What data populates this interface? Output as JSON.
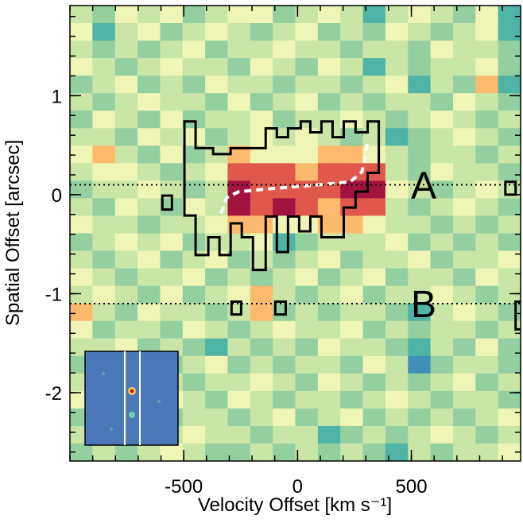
{
  "chart_data": {
    "type": "heatmap",
    "xlabel": "Velocity Offset [km s⁻¹]",
    "ylabel": "Spatial Offset [arcsec]",
    "xlim": [
      -1000,
      980
    ],
    "ylim": [
      -2.69,
      1.91
    ],
    "xticks": [
      -500,
      0,
      500
    ],
    "yticks": [
      1,
      0,
      -1,
      -2
    ],
    "x_minor_step": 100,
    "y_minor_step": 0.2,
    "colormap": [
      "#3f67b0",
      "#3f8fb8",
      "#4fb3a6",
      "#94cfa0",
      "#c9e6a6",
      "#eff5b4",
      "#fdba6e",
      "#e0574b",
      "#a3133f"
    ],
    "grid_values": [
      [
        4,
        3,
        5,
        4,
        5,
        3,
        4,
        5,
        5,
        3,
        4,
        5,
        4,
        2,
        4,
        5,
        4,
        3,
        5,
        2
      ],
      [
        5,
        2,
        4,
        5,
        3,
        4,
        5,
        4,
        3,
        4,
        5,
        3,
        4,
        3,
        5,
        4,
        3,
        4,
        5,
        2
      ],
      [
        4,
        3,
        4,
        3,
        4,
        5,
        3,
        4,
        4,
        5,
        4,
        4,
        3,
        4,
        4,
        3,
        5,
        4,
        4,
        3
      ],
      [
        5,
        4,
        3,
        4,
        5,
        4,
        4,
        3,
        5,
        4,
        3,
        5,
        4,
        2,
        4,
        3,
        4,
        4,
        5,
        3
      ],
      [
        3,
        4,
        5,
        3,
        4,
        3,
        5,
        4,
        4,
        3,
        4,
        4,
        3,
        4,
        5,
        2,
        4,
        3,
        6,
        2
      ],
      [
        4,
        3,
        4,
        5,
        4,
        4,
        3,
        5,
        3,
        4,
        5,
        3,
        4,
        3,
        4,
        4,
        3,
        5,
        4,
        3
      ],
      [
        3,
        5,
        4,
        3,
        5,
        3,
        4,
        4,
        5,
        3,
        4,
        4,
        5,
        4,
        3,
        4,
        5,
        4,
        3,
        4
      ],
      [
        4,
        4,
        3,
        5,
        4,
        5,
        3,
        4,
        5,
        4,
        5,
        4,
        3,
        4,
        2,
        3,
        4,
        5,
        4,
        3
      ],
      [
        5,
        6,
        4,
        3,
        5,
        3,
        4,
        6,
        5,
        5,
        5,
        6,
        6,
        5,
        4,
        3,
        4,
        4,
        3,
        4
      ],
      [
        4,
        5,
        5,
        4,
        3,
        4,
        5,
        7,
        7,
        7,
        6,
        7,
        7,
        7,
        4,
        3,
        5,
        4,
        4,
        3
      ],
      [
        3,
        4,
        4,
        5,
        4,
        3,
        4,
        8,
        7,
        7,
        7,
        7,
        8,
        8,
        5,
        4,
        3,
        4,
        5,
        4
      ],
      [
        4,
        3,
        5,
        4,
        3,
        5,
        4,
        8,
        7,
        8,
        7,
        6,
        7,
        7,
        4,
        3,
        4,
        5,
        4,
        3
      ],
      [
        5,
        4,
        4,
        3,
        4,
        4,
        5,
        6,
        6,
        5,
        5,
        6,
        6,
        5,
        4,
        4,
        3,
        4,
        3,
        4
      ],
      [
        3,
        4,
        5,
        4,
        5,
        3,
        4,
        4,
        5,
        2,
        3,
        4,
        4,
        4,
        5,
        3,
        4,
        3,
        4,
        3
      ],
      [
        4,
        3,
        4,
        5,
        3,
        4,
        5,
        3,
        4,
        3,
        4,
        5,
        3,
        4,
        4,
        5,
        3,
        4,
        4,
        5
      ],
      [
        5,
        4,
        3,
        4,
        4,
        5,
        3,
        4,
        3,
        4,
        5,
        3,
        4,
        5,
        3,
        4,
        4,
        3,
        5,
        4
      ],
      [
        4,
        5,
        4,
        3,
        5,
        3,
        4,
        5,
        6,
        4,
        3,
        4,
        5,
        3,
        4,
        4,
        5,
        4,
        3,
        4
      ],
      [
        6,
        4,
        3,
        5,
        4,
        4,
        3,
        4,
        6,
        3,
        4,
        3,
        4,
        4,
        3,
        2,
        4,
        5,
        4,
        3
      ],
      [
        5,
        3,
        4,
        4,
        3,
        5,
        4,
        3,
        4,
        5,
        4,
        4,
        5,
        3,
        4,
        3,
        4,
        4,
        3,
        4
      ],
      [
        4,
        4,
        5,
        3,
        4,
        3,
        2,
        4,
        3,
        4,
        3,
        5,
        4,
        4,
        3,
        2,
        4,
        3,
        5,
        3
      ],
      [
        3,
        5,
        4,
        4,
        3,
        4,
        5,
        3,
        4,
        3,
        4,
        4,
        3,
        5,
        4,
        1,
        3,
        4,
        4,
        3
      ],
      [
        4,
        3,
        3,
        5,
        4,
        3,
        4,
        4,
        5,
        4,
        3,
        5,
        4,
        3,
        4,
        3,
        4,
        5,
        3,
        4
      ],
      [
        5,
        4,
        4,
        3,
        5,
        4,
        3,
        5,
        4,
        3,
        4,
        4,
        3,
        4,
        5,
        4,
        3,
        4,
        4,
        3
      ],
      [
        3,
        4,
        5,
        4,
        3,
        4,
        4,
        3,
        4,
        5,
        3,
        4,
        5,
        3,
        4,
        3,
        4,
        3,
        4,
        5
      ],
      [
        4,
        3,
        4,
        3,
        4,
        5,
        4,
        4,
        3,
        4,
        4,
        2,
        3,
        4,
        3,
        4,
        5,
        4,
        3,
        4
      ],
      [
        3,
        4,
        3,
        4,
        5,
        4,
        3,
        3,
        4,
        3,
        4,
        3,
        4,
        3,
        2,
        4,
        3,
        4,
        4,
        5
      ]
    ],
    "contours": [
      [
        [
          -497,
          0.74
        ],
        [
          -448,
          0.74
        ],
        [
          -448,
          0.47
        ],
        [
          -371,
          0.47
        ],
        [
          -371,
          0.41
        ],
        [
          -294,
          0.41
        ],
        [
          -294,
          0.47
        ],
        [
          -140,
          0.47
        ],
        [
          -140,
          0.67
        ],
        [
          -91,
          0.67
        ],
        [
          -91,
          0.58
        ],
        [
          -42,
          0.58
        ],
        [
          -42,
          0.67
        ],
        [
          14,
          0.67
        ],
        [
          14,
          0.74
        ],
        [
          56,
          0.74
        ],
        [
          56,
          0.63
        ],
        [
          105,
          0.63
        ],
        [
          105,
          0.74
        ],
        [
          154,
          0.74
        ],
        [
          154,
          0.58
        ],
        [
          203,
          0.58
        ],
        [
          203,
          0.74
        ],
        [
          255,
          0.74
        ],
        [
          255,
          0.63
        ],
        [
          308,
          0.63
        ],
        [
          308,
          0.74
        ],
        [
          357,
          0.74
        ],
        [
          357,
          0.22
        ],
        [
          308,
          0.22
        ],
        [
          308,
          0.03
        ],
        [
          255,
          0.03
        ],
        [
          255,
          -0.13
        ],
        [
          203,
          -0.13
        ],
        [
          203,
          -0.43
        ],
        [
          105,
          -0.43
        ],
        [
          105,
          -0.22
        ],
        [
          56,
          -0.22
        ],
        [
          56,
          -0.37
        ],
        [
          7,
          -0.37
        ],
        [
          7,
          -0.22
        ],
        [
          -42,
          -0.22
        ],
        [
          -42,
          -0.58
        ],
        [
          -91,
          -0.58
        ],
        [
          -91,
          -0.22
        ],
        [
          -140,
          -0.22
        ],
        [
          -140,
          -0.76
        ],
        [
          -196,
          -0.76
        ],
        [
          -196,
          -0.43
        ],
        [
          -245,
          -0.43
        ],
        [
          -245,
          -0.29
        ],
        [
          -294,
          -0.29
        ],
        [
          -294,
          -0.61
        ],
        [
          -343,
          -0.61
        ],
        [
          -343,
          -0.43
        ],
        [
          -392,
          -0.43
        ],
        [
          -392,
          -0.61
        ],
        [
          -448,
          -0.61
        ],
        [
          -448,
          -0.21
        ],
        [
          -497,
          -0.21
        ]
      ],
      [
        [
          -594,
          -0.01
        ],
        [
          -552,
          -0.01
        ],
        [
          -552,
          -0.15
        ],
        [
          -594,
          -0.15
        ]
      ],
      [
        [
          -290,
          -1.08
        ],
        [
          -248,
          -1.08
        ],
        [
          -248,
          -1.21
        ],
        [
          -290,
          -1.21
        ]
      ],
      [
        [
          -98,
          -1.08
        ],
        [
          -52,
          -1.08
        ],
        [
          -52,
          -1.21
        ],
        [
          -98,
          -1.21
        ]
      ],
      [
        [
          913,
          0.13
        ],
        [
          958,
          0.13
        ],
        [
          958,
          0
        ],
        [
          913,
          0
        ]
      ],
      [
        [
          958,
          -1.08
        ],
        [
          1010,
          -1.08
        ],
        [
          1010,
          -1.36
        ],
        [
          958,
          -1.36
        ]
      ]
    ],
    "trace": {
      "x": [
        -336,
        -311,
        -259,
        -119,
        91,
        231,
        283,
        308
      ],
      "y": [
        -0.19,
        -0.03,
        0.03,
        0.06,
        0.1,
        0.13,
        0.23,
        0.53
      ]
    },
    "lines": [
      {
        "y": 0.1,
        "label": "A"
      },
      {
        "y": -1.1,
        "label": "B"
      }
    ]
  }
}
